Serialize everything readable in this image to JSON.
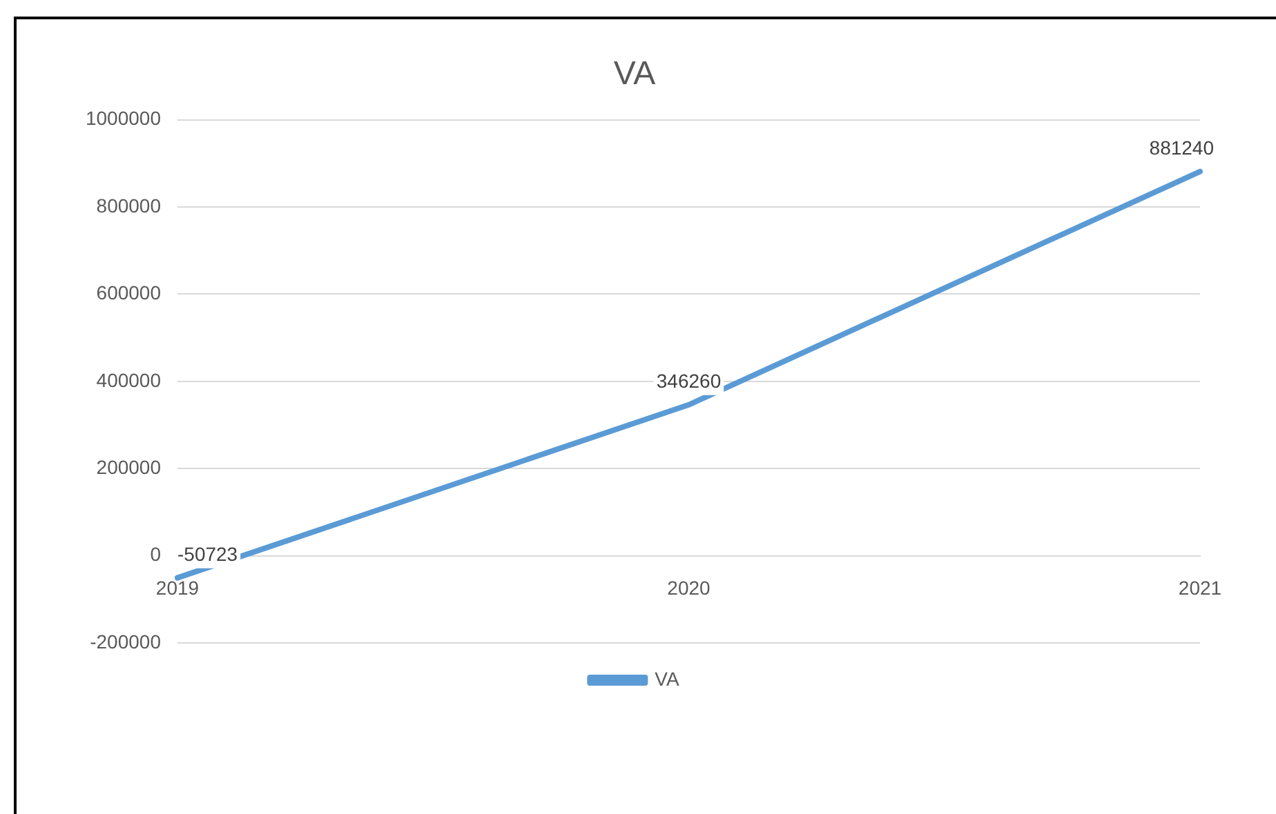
{
  "chart_data": {
    "type": "line",
    "title": "VA",
    "categories": [
      "2019",
      "2020",
      "2021"
    ],
    "series": [
      {
        "name": "VA",
        "color": "#5b9bd5",
        "values": [
          -50723,
          346260,
          881240
        ]
      }
    ],
    "ylim": [
      -200000,
      1000000
    ],
    "yticks": [
      -200000,
      0,
      200000,
      400000,
      600000,
      800000,
      1000000
    ],
    "grid": "y",
    "legend": "bottom",
    "data_labels": true,
    "marker": "none"
  }
}
